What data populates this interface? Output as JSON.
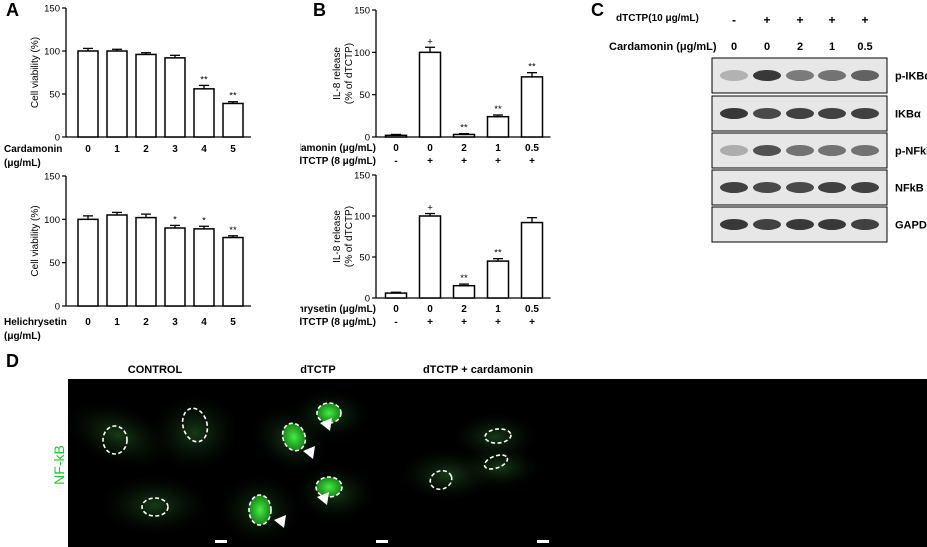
{
  "panels": {
    "a": "A",
    "b": "B",
    "c": "C",
    "d": "D"
  },
  "chart_data": [
    {
      "id": "A-top",
      "type": "bar",
      "ylabel": "Cell viability (%)",
      "ylim": [
        0,
        150
      ],
      "yticks": [
        0,
        50,
        100,
        150
      ],
      "xlabel_lines": [
        "Cardamonin",
        "(μg/mL)"
      ],
      "categories": [
        "0",
        "1",
        "2",
        "3",
        "4",
        "5"
      ],
      "values": [
        100,
        100,
        96,
        92,
        56,
        39
      ],
      "errors": [
        3,
        2,
        2,
        3,
        4,
        2
      ],
      "annotations": [
        "",
        "",
        "",
        "",
        "**",
        "**"
      ]
    },
    {
      "id": "A-bottom",
      "type": "bar",
      "ylabel": "Cell viability (%)",
      "ylim": [
        0,
        150
      ],
      "yticks": [
        0,
        50,
        100,
        150
      ],
      "xlabel_lines": [
        "Helichrysetin",
        "(μg/mL)"
      ],
      "categories": [
        "0",
        "1",
        "2",
        "3",
        "4",
        "5"
      ],
      "values": [
        100,
        105,
        102,
        90,
        89,
        79
      ],
      "errors": [
        4,
        3,
        4,
        3,
        3,
        2
      ],
      "annotations": [
        "",
        "",
        "",
        "*",
        "*",
        "**"
      ]
    },
    {
      "id": "B-top",
      "type": "bar",
      "ylabel_lines": [
        "IL-8 release",
        "(% of dTCTP)"
      ],
      "ylim": [
        0,
        150
      ],
      "yticks": [
        0,
        50,
        100,
        150
      ],
      "row1_label": "Cardamonin (μg/mL)",
      "row1": [
        "0",
        "0",
        "2",
        "1",
        "0.5"
      ],
      "row2_label": "dTCTP (8 μg/mL)",
      "row2": [
        "-",
        "+",
        "+",
        "+",
        "+"
      ],
      "values": [
        2,
        100,
        3,
        24,
        71
      ],
      "errors": [
        1,
        6,
        1,
        2,
        5
      ],
      "annotations": [
        "",
        "+",
        "**",
        "**",
        "**"
      ]
    },
    {
      "id": "B-bottom",
      "type": "bar",
      "ylabel_lines": [
        "IL-8 release",
        "(% of dTCTP)"
      ],
      "ylim": [
        0,
        150
      ],
      "yticks": [
        0,
        50,
        100,
        150
      ],
      "row1_label": "Helichrysetin (μg/mL)",
      "row1": [
        "0",
        "0",
        "2",
        "1",
        "0.5"
      ],
      "row2_label": "dTCTP (8 μg/mL)",
      "row2": [
        "-",
        "+",
        "+",
        "+",
        "+"
      ],
      "values": [
        6,
        100,
        15,
        45,
        92
      ],
      "errors": [
        1,
        3,
        2,
        3,
        6
      ],
      "annotations": [
        "",
        "+",
        "**",
        "**",
        ""
      ]
    }
  ],
  "blot": {
    "treatment_label": "dTCTP(10 μg/mL)",
    "treatment": [
      "-",
      "+",
      "+",
      "+",
      "+"
    ],
    "dose_label": "Cardamonin (μg/mL)",
    "doses": [
      "0",
      "0",
      "2",
      "1",
      "0.5"
    ],
    "rows": [
      {
        "label": "p-IKBα",
        "intensity": [
          0.12,
          0.85,
          0.45,
          0.5,
          0.6
        ]
      },
      {
        "label": "IKBα",
        "intensity": [
          0.85,
          0.75,
          0.8,
          0.8,
          0.8
        ]
      },
      {
        "label": "p-NFkB",
        "intensity": [
          0.15,
          0.7,
          0.5,
          0.5,
          0.5
        ]
      },
      {
        "label": "NFkB",
        "intensity": [
          0.8,
          0.75,
          0.75,
          0.8,
          0.8
        ]
      },
      {
        "label": "GAPDH",
        "intensity": [
          0.85,
          0.8,
          0.85,
          0.85,
          0.8
        ]
      }
    ]
  },
  "micro": {
    "side_label": "NF-kB",
    "titles": [
      "CONTROL",
      "dTCTP",
      "dTCTP + cardamonin"
    ]
  }
}
